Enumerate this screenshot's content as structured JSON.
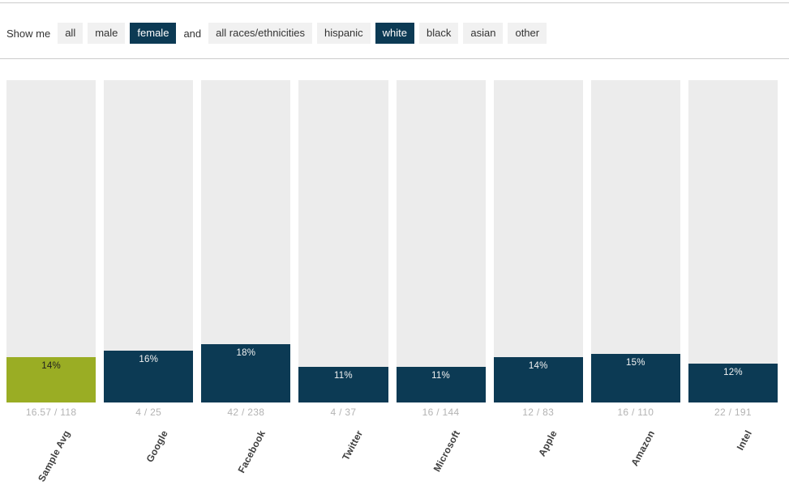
{
  "colors": {
    "navy": "#0c3a54",
    "green": "#9aad24",
    "track": "#ececec",
    "rule": "#cccccc",
    "fraction_text": "#b3b3b3",
    "label_text": "#3f3f3f"
  },
  "filters": {
    "show_me_label": "Show me",
    "conjunction": "and",
    "gender": [
      {
        "label": "all",
        "selected": false
      },
      {
        "label": "male",
        "selected": false
      },
      {
        "label": "female",
        "selected": true
      }
    ],
    "race": [
      {
        "label": "all races/ethnicities",
        "selected": false
      },
      {
        "label": "hispanic",
        "selected": false
      },
      {
        "label": "white",
        "selected": true
      },
      {
        "label": "black",
        "selected": false
      },
      {
        "label": "asian",
        "selected": false
      },
      {
        "label": "other",
        "selected": false
      }
    ]
  },
  "chart_data": {
    "type": "bar",
    "title": "",
    "categories": [
      "Sample Avg",
      "Google",
      "Facebook",
      "Twitter",
      "Microsoft",
      "Apple",
      "Amazon",
      "Intel"
    ],
    "values": [
      14,
      16,
      18,
      11,
      11,
      14,
      15,
      12
    ],
    "value_labels": [
      "14%",
      "16%",
      "18%",
      "11%",
      "11%",
      "14%",
      "15%",
      "12%"
    ],
    "fractions": [
      "16.57 / 118",
      "4 / 25",
      "42 / 238",
      "4 / 37",
      "16 / 144",
      "12 / 83",
      "16 / 110",
      "22 / 191"
    ],
    "ylim": [
      0,
      100
    ],
    "unit": "%",
    "grid": false,
    "legend": false,
    "track_full_height_represents": 100,
    "highlight_category": "Sample Avg"
  }
}
